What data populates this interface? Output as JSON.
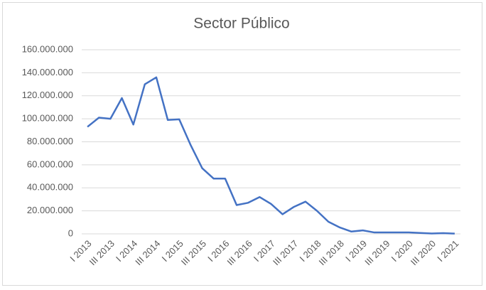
{
  "chart_data": {
    "type": "line",
    "title": "Sector Público",
    "categories": [
      "I 2013",
      null,
      "III 2013",
      null,
      "I 2014",
      null,
      "III 2014",
      null,
      "I 2015",
      null,
      "III 2015",
      null,
      "I 2016",
      null,
      "III 2016",
      null,
      "I 2017",
      null,
      "III 2017",
      null,
      "I 2018",
      null,
      "III 2018",
      null,
      "I 2019",
      null,
      "III 2019",
      null,
      "I 2020",
      null,
      "III 2020",
      null,
      "I 2021"
    ],
    "series": [
      {
        "name": "Sector Público",
        "color": "#4472c4",
        "values": [
          93000000,
          101000000,
          100000000,
          118000000,
          95000000,
          130000000,
          136000000,
          99000000,
          99500000,
          77000000,
          57000000,
          48000000,
          48000000,
          25000000,
          27000000,
          32000000,
          26000000,
          17000000,
          23500000,
          28000000,
          20000000,
          10500000,
          5500000,
          2000000,
          3000000,
          1200000,
          1200000,
          1200000,
          1200000,
          800000,
          300000,
          600000,
          200000
        ]
      }
    ],
    "ylim": [
      0,
      160000000
    ],
    "yticks": [
      0,
      {
        "value": 20000000,
        "label": "20.000.000"
      },
      {
        "value": 40000000,
        "label": "40.000.000"
      },
      {
        "value": 60000000,
        "label": "60.000.000"
      },
      {
        "value": 80000000,
        "label": "80.000.000"
      },
      {
        "value": 100000000,
        "label": "100.000.000"
      },
      {
        "value": 120000000,
        "label": "120.000.000"
      },
      {
        "value": 140000000,
        "label": "140.000.000"
      },
      {
        "value": 160000000,
        "label": "160.000.000"
      }
    ],
    "grid": true
  }
}
